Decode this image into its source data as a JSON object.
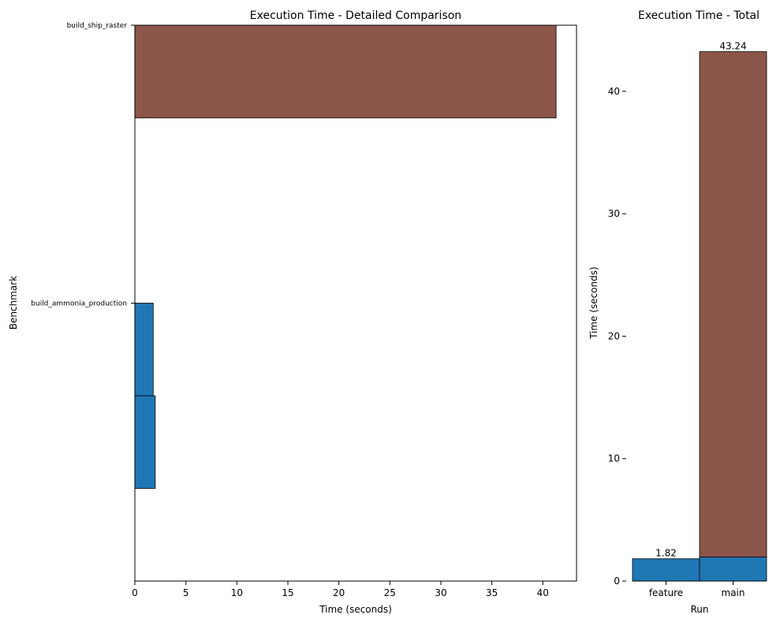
{
  "chart_data": [
    {
      "type": "bar",
      "orientation": "horizontal",
      "title": "Execution Time - Detailed Comparison",
      "xlabel": "Time (seconds)",
      "ylabel": "Benchmark",
      "categories": [
        "build_ship_raster",
        "build_ammonia_production"
      ],
      "xlim": [
        0,
        43.3
      ],
      "xticks": [
        0,
        5,
        10,
        15,
        20,
        25,
        30,
        35,
        40
      ],
      "series": [
        {
          "color": "#8c564b",
          "values": [
            41.3,
            null
          ]
        },
        {
          "color": "#1f77b4",
          "values": [
            null,
            1.8
          ]
        },
        {
          "color": "#1f77b4",
          "values": [
            null,
            2.0
          ]
        }
      ],
      "grid": false,
      "legend": "none"
    },
    {
      "type": "bar",
      "stacked": true,
      "title": "Execution Time - Total",
      "xlabel": "Run",
      "ylabel": "Time (seconds)",
      "categories": [
        "feature",
        "main"
      ],
      "ylim": [
        0,
        45.4
      ],
      "yticks": [
        0,
        10,
        20,
        30,
        40
      ],
      "series": [
        {
          "color": "#1f77b4",
          "values": [
            1.82,
            1.96
          ]
        },
        {
          "color": "#8c564b",
          "values": [
            0,
            41.28
          ]
        }
      ],
      "totals": [
        1.82,
        43.24
      ],
      "total_labels": [
        "1.82",
        "43.24"
      ],
      "grid": false,
      "legend": "none"
    }
  ]
}
